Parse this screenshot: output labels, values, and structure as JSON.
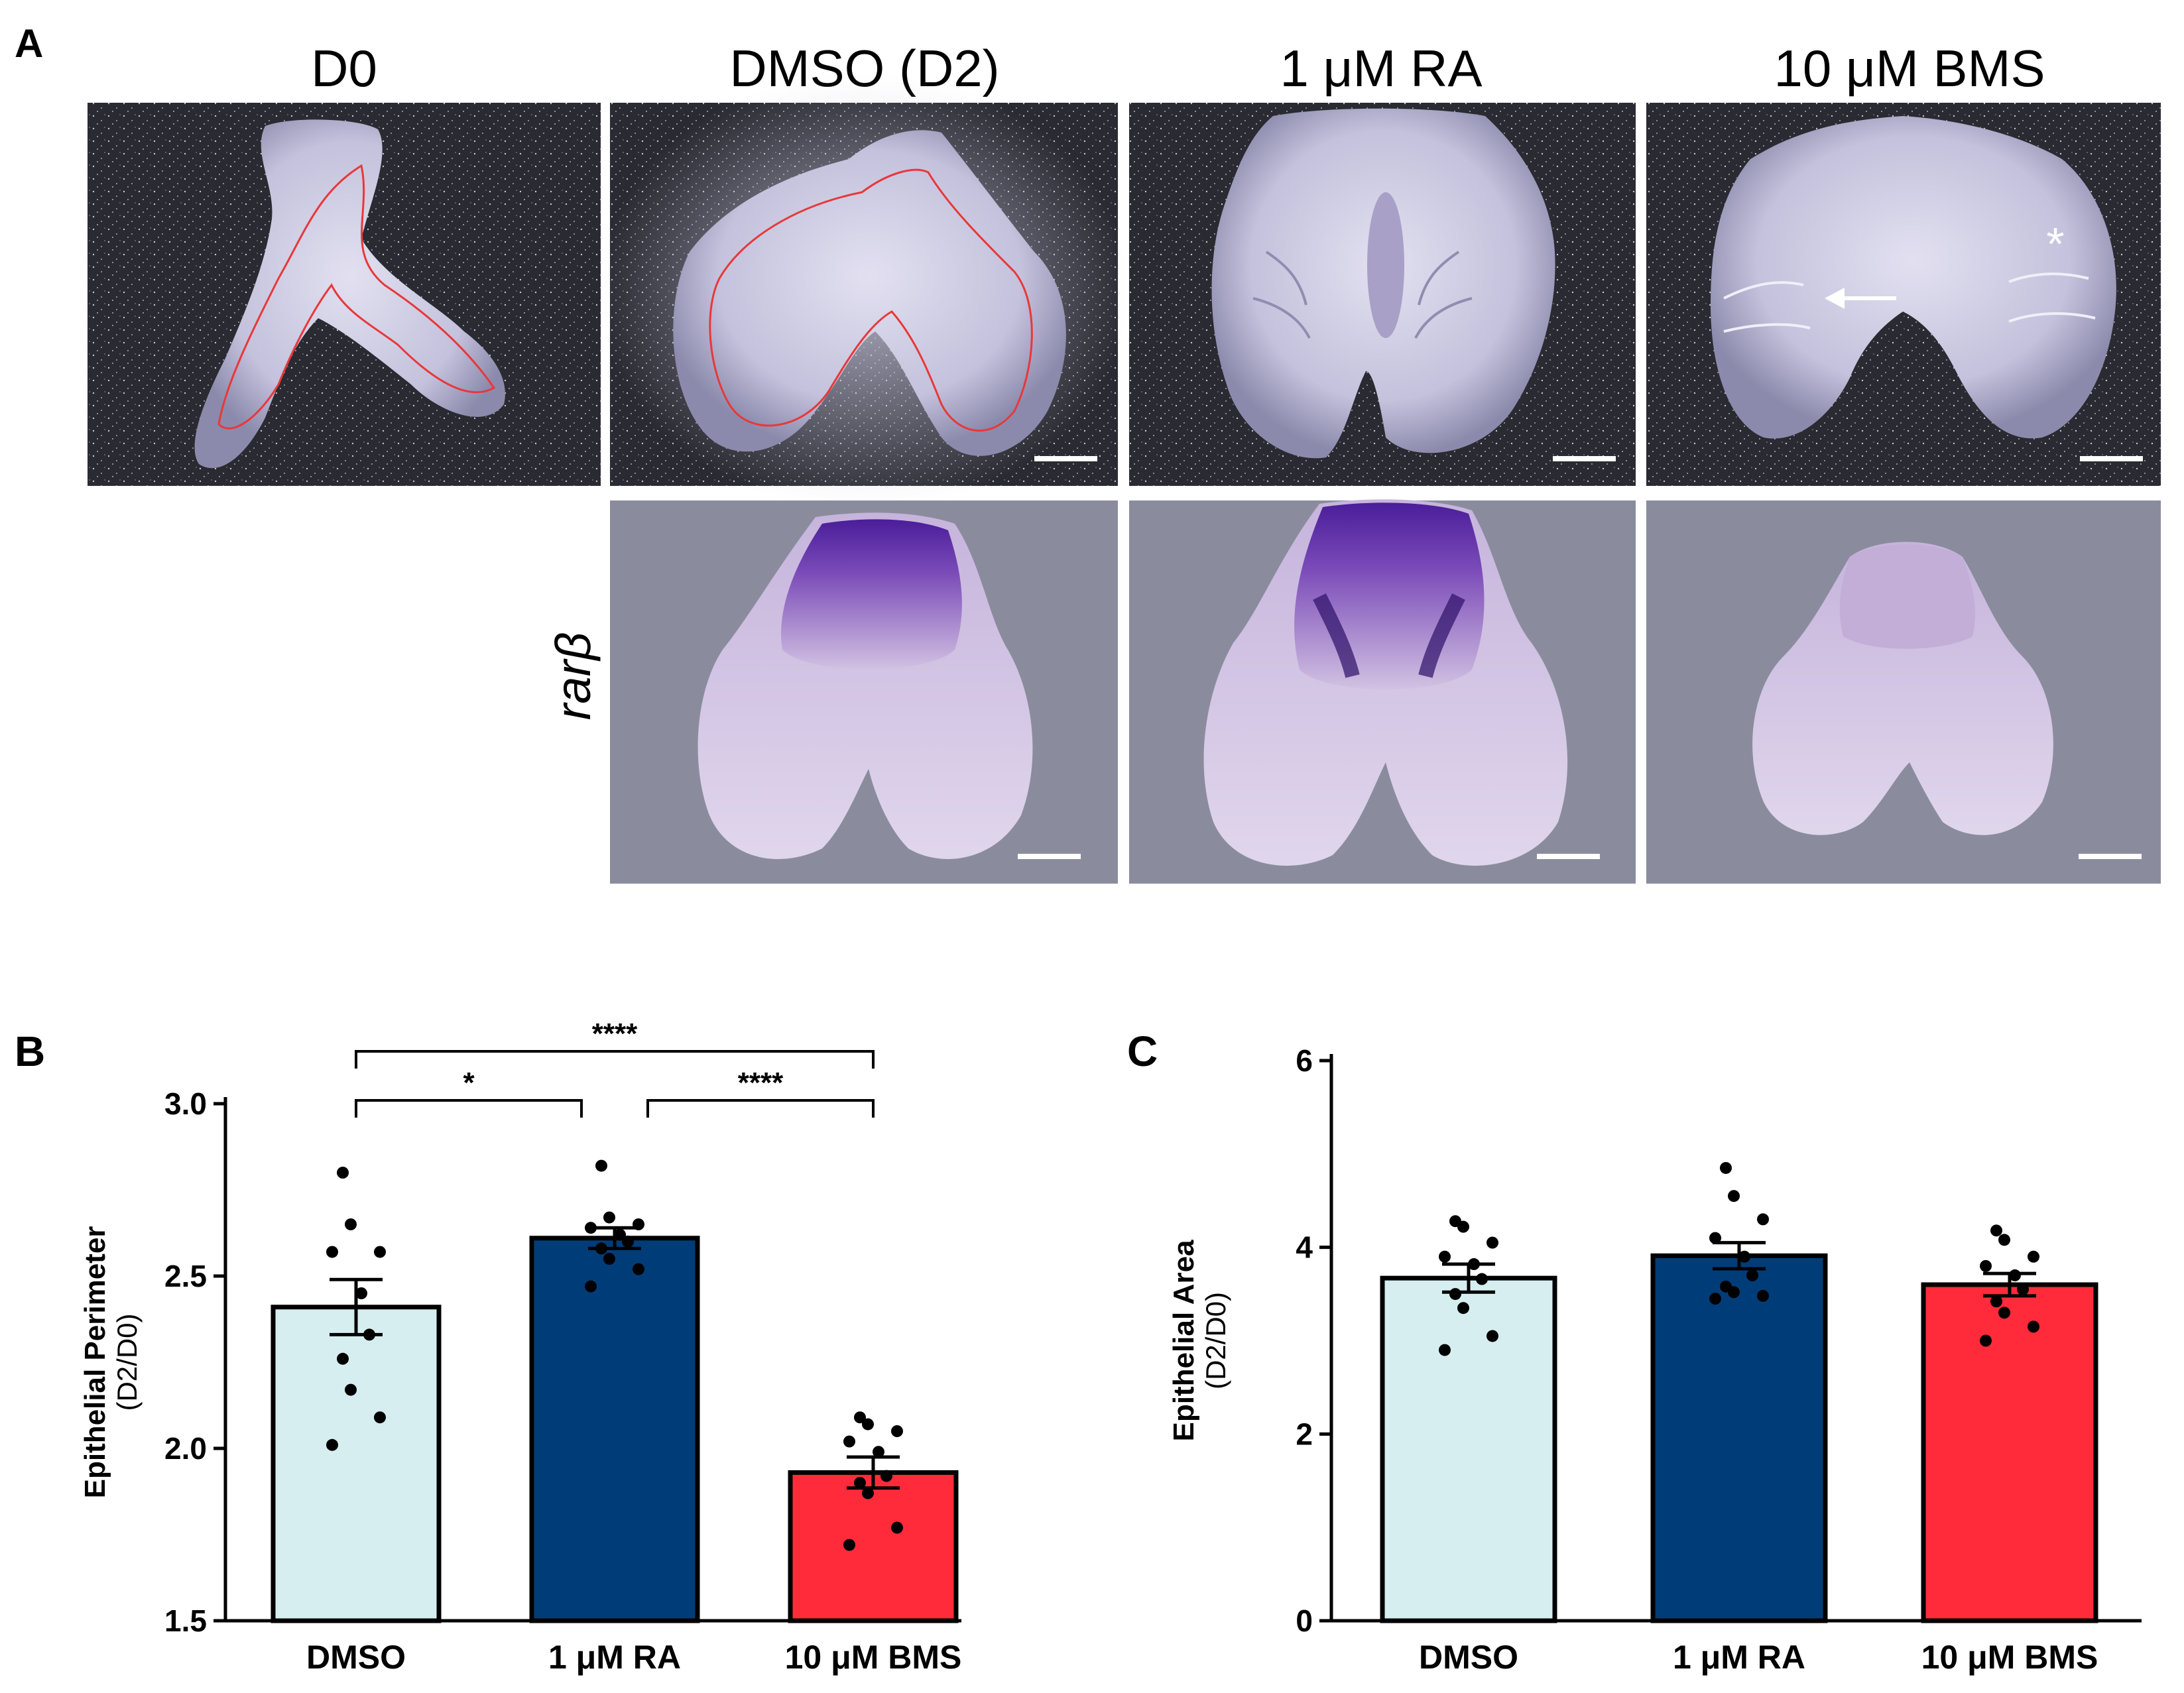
{
  "panel_labels": {
    "a": "A",
    "b": "B",
    "c": "C"
  },
  "panel_a": {
    "columns": [
      "D0",
      "DMSO (D2)",
      "1 μM RA",
      "10 μM BMS"
    ],
    "row_label": "rarβ",
    "markers": {
      "asterisk": "*",
      "arrow": "arrow-icon"
    }
  },
  "colors": {
    "dmso": "#d6eef0",
    "ra": "#003d78",
    "bms": "#ff2b3a",
    "outline": "#e8383a",
    "dark_bg": "#2a2a32",
    "gray_bg": "#8a8c9e"
  },
  "chart_data": [
    {
      "type": "bar",
      "panel": "B",
      "categories": [
        "DMSO",
        "1 μM RA",
        "10 μM BMS"
      ],
      "values": [
        2.41,
        2.61,
        1.93
      ],
      "sem": [
        0.08,
        0.03,
        0.045
      ],
      "points": [
        [
          2.8,
          2.65,
          2.57,
          2.57,
          2.45,
          2.33,
          2.26,
          2.17,
          2.09,
          2.01
        ],
        [
          2.82,
          2.67,
          2.65,
          2.64,
          2.62,
          2.6,
          2.58,
          2.55,
          2.52,
          2.47
        ],
        [
          2.09,
          2.07,
          2.05,
          2.02,
          1.99,
          1.92,
          1.9,
          1.87,
          1.77,
          1.72
        ]
      ],
      "ylabel": "Epithelial Perimeter",
      "ylabel2": "(D2/D0)",
      "ylim": [
        1.5,
        3.0
      ],
      "yticks": [
        "1.5",
        "2.0",
        "2.5",
        "3.0"
      ],
      "ytick_values": [
        1.5,
        2.0,
        2.5,
        3.0
      ],
      "significance": [
        {
          "from": 0,
          "to": 1,
          "label": "*"
        },
        {
          "from": 1,
          "to": 2,
          "label": "****"
        },
        {
          "from": 0,
          "to": 2,
          "label": "****"
        }
      ]
    },
    {
      "type": "bar",
      "panel": "C",
      "categories": [
        "DMSO",
        "1 μM RA",
        "10 μM BMS"
      ],
      "values": [
        3.67,
        3.91,
        3.6
      ],
      "sem": [
        0.15,
        0.14,
        0.12
      ],
      "points": [
        [
          4.28,
          4.22,
          4.05,
          3.9,
          3.82,
          3.66,
          3.5,
          3.35,
          3.05,
          2.9
        ],
        [
          4.85,
          4.55,
          4.3,
          4.1,
          3.9,
          3.7,
          3.58,
          3.52,
          3.48,
          3.45
        ],
        [
          4.18,
          4.08,
          3.9,
          3.8,
          3.7,
          3.55,
          3.42,
          3.3,
          3.15,
          3.0
        ]
      ],
      "ylabel": "Epithelial Area",
      "ylabel2": "(D2/D0)",
      "ylim": [
        0,
        6
      ],
      "yticks": [
        "0",
        "2",
        "4",
        "6"
      ],
      "ytick_values": [
        0,
        2,
        4,
        6
      ]
    }
  ]
}
